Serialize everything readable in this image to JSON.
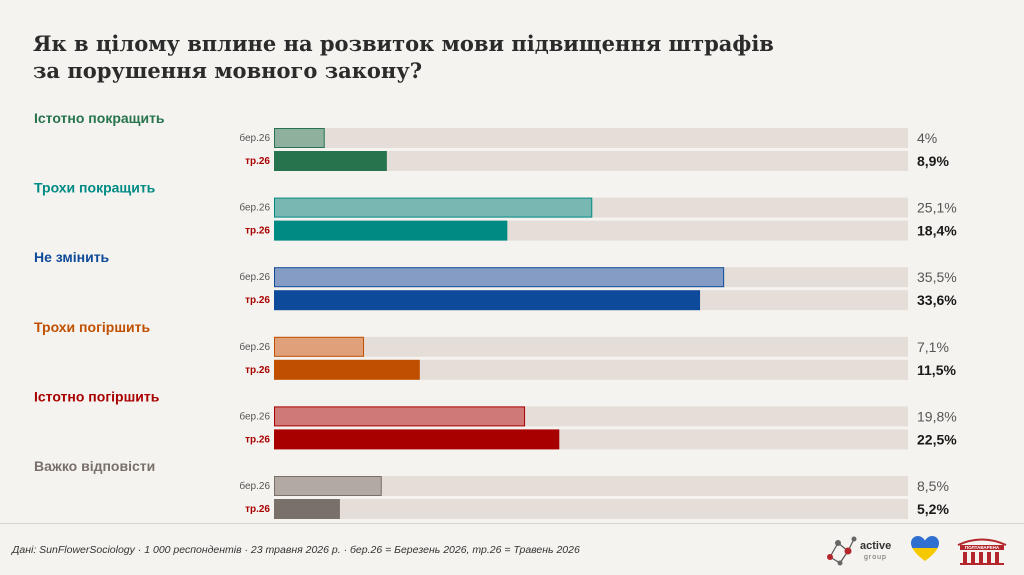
{
  "title_lines": [
    "Як в цілому вплине на розвиток мови підвищення штрафів",
    "за порушення мовного закону?"
  ],
  "footer": "Дані: SunFlowerSociology · 1 000 респондентів · 23 травня 2026 р. · бер.26 = Березень 2026, тр.26 = Травень 2026",
  "logos": {
    "active_group": "active",
    "active_group_sub": "group",
    "poltava": "ПОЛТАВАРЕНА"
  },
  "chart_data": {
    "type": "bar",
    "orientation": "horizontal",
    "xlim": [
      0,
      50
    ],
    "series_labels": [
      "бер.26",
      "тр.26"
    ],
    "categories": [
      {
        "label": "Істотно покращить",
        "color": "#26734d",
        "light": "#8fb09d",
        "values": [
          4,
          8.9
        ],
        "value_labels": [
          "4%",
          "8,9%"
        ]
      },
      {
        "label": "Трохи покращить",
        "color": "#008a84",
        "light": "#79b8b2",
        "values": [
          25.1,
          18.4
        ],
        "value_labels": [
          "25,1%",
          "18,4%"
        ]
      },
      {
        "label": "Не змінить",
        "color": "#0e4a9a",
        "light": "#859dc4",
        "values": [
          35.5,
          33.6
        ],
        "value_labels": [
          "35,5%",
          "33,6%"
        ]
      },
      {
        "label": "Трохи погіршить",
        "color": "#c05000",
        "light": "#e0a079",
        "values": [
          7.1,
          11.5
        ],
        "value_labels": [
          "7,1%",
          "11,5%"
        ]
      },
      {
        "label": "Істотно погіршить",
        "color": "#a80000",
        "light": "#cf7979",
        "values": [
          19.8,
          22.5
        ],
        "value_labels": [
          "19,8%",
          "22,5%"
        ]
      },
      {
        "label": "Важко відповісти",
        "color": "#7a706a",
        "light": "#b2a9a3",
        "values": [
          8.5,
          5.2
        ],
        "value_labels": [
          "8,5%",
          "5,2%"
        ]
      }
    ],
    "colors": {
      "track": "#e5ddd8",
      "label_first": "#555555",
      "label_second": "#a80000",
      "value_first": "#555555",
      "value_second": "#1a1a1a"
    }
  }
}
